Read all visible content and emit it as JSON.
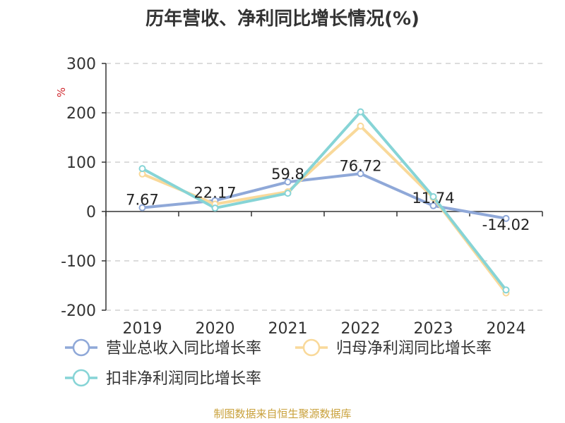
{
  "page": {
    "title": "历年营收、净利同比增长情况(%)",
    "source": "制图数据来自恒生聚源数据库"
  },
  "chart_data": {
    "type": "line",
    "title": "历年营收、净利同比增长情况(%)",
    "ylabel": "%",
    "xlabel": "",
    "categories": [
      "2019",
      "2020",
      "2021",
      "2022",
      "2023",
      "2024"
    ],
    "ylim": [
      -200,
      300
    ],
    "yticks": [
      300,
      200,
      100,
      0,
      -100,
      -200
    ],
    "grid": true,
    "legend_position": "bottom",
    "series": [
      {
        "name": "营业总收入同比增长率",
        "color": "#8fa8d8",
        "values": [
          7.67,
          22.17,
          59.8,
          76.72,
          11.74,
          -14.02
        ],
        "data_labels": [
          "7.67",
          "22.17",
          "59.8",
          "76.72",
          "11.74",
          "-14.02"
        ]
      },
      {
        "name": "归母净利润同比增长率",
        "color": "#f9d99a",
        "values": [
          76,
          15,
          40,
          173,
          28,
          -165
        ]
      },
      {
        "name": "扣非净利润同比增长率",
        "color": "#86d4d6",
        "values": [
          87,
          7,
          37,
          202,
          30,
          -159
        ]
      }
    ]
  }
}
